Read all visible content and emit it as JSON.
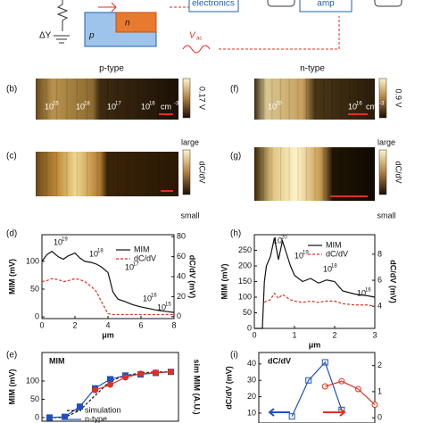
{
  "figure": {
    "top": {
      "dy": "ΔY",
      "p": "p",
      "n": "n",
      "electronics": "electronics",
      "amp": "amp",
      "vac": "V",
      "vac_sub": "ac"
    },
    "p_type": "p-type",
    "n_type": "n-type",
    "b": {
      "label": "(b)",
      "doping": [
        {
          "base": "10",
          "exp": "15"
        },
        {
          "base": "10",
          "exp": "18"
        },
        {
          "base": "10",
          "exp": "17"
        },
        {
          "base": "10",
          "exp": "16"
        }
      ],
      "unit": "cm",
      "unit_exp": "-3",
      "colorbar": "0.17 V"
    },
    "f": {
      "label": "(f)",
      "doping": [
        {
          "base": "10",
          "exp": "20"
        },
        {
          "base": "10",
          "exp": "16"
        }
      ],
      "unit": "cm",
      "unit_exp": "-3",
      "colorbar": "0.9 V"
    },
    "c": {
      "label": "(c)",
      "top": "large",
      "middle": "dC/dV",
      "bottom": "small"
    },
    "g": {
      "label": "(g)",
      "top": "large",
      "middle": "dC/dV",
      "bottom": "small"
    }
  },
  "chart_data": [
    {
      "type": "line",
      "label": "(d)",
      "xlabel": "μm",
      "ylabel": "MIM (mV)",
      "y2label": "dC/dV (mV)",
      "x": [
        0,
        0.3,
        0.6,
        1,
        1.3,
        1.6,
        2,
        2.3,
        2.6,
        3,
        3.3,
        3.6,
        4,
        4.3,
        4.6,
        5,
        5.5,
        6,
        6.5,
        7,
        7.5,
        8
      ],
      "xlim": [
        0,
        8
      ],
      "xticks": [
        0,
        2,
        4,
        6,
        8
      ],
      "ylim": [
        -3,
        148
      ],
      "yticks": [
        0,
        50,
        100
      ],
      "y2lim": [
        -2,
        82
      ],
      "y2ticks": [
        0,
        20,
        40,
        60,
        80
      ],
      "series": [
        {
          "name": "MIM",
          "color": "#111111",
          "values": [
            100,
            112,
            118,
            108,
            104,
            110,
            115,
            106,
            100,
            98,
            95,
            90,
            80,
            45,
            32,
            28,
            22,
            18,
            15,
            12,
            10,
            8
          ]
        },
        {
          "name": "dC/dV",
          "color": "#e03020",
          "axis": "y2",
          "dashed": true,
          "values": [
            35,
            36,
            38,
            37,
            35,
            36,
            38,
            37,
            35,
            30,
            25,
            15,
            3,
            2,
            2,
            2,
            2,
            2,
            2,
            2,
            2,
            2
          ]
        }
      ],
      "annotations": [
        {
          "base": "10",
          "exp": "19"
        },
        {
          "base": "10",
          "exp": "18"
        },
        {
          "base": "10",
          "exp": "17"
        },
        {
          "base": "10",
          "exp": "16"
        },
        {
          "base": "10",
          "exp": "15"
        }
      ]
    },
    {
      "type": "line",
      "label": "(h)",
      "xlabel": "μm",
      "ylabel": "MIM (mV)",
      "y2label": "dC/dV (mV)",
      "x": [
        0,
        0.2,
        0.25,
        0.3,
        0.4,
        0.5,
        0.6,
        0.7,
        0.8,
        0.9,
        1,
        1.2,
        1.4,
        1.6,
        1.8,
        2,
        2.2,
        2.5,
        2.8,
        3
      ],
      "xlim": [
        0,
        3
      ],
      "xticks": [
        0,
        1,
        2,
        3
      ],
      "ylim": [
        0,
        300
      ],
      "yticks": [
        0,
        50,
        100,
        150,
        200,
        250
      ],
      "y2lim": [
        2.3,
        9.5
      ],
      "y2ticks": [
        4,
        6,
        8
      ],
      "series": [
        {
          "name": "MIM",
          "color": "#111111",
          "values": [
            0,
            0,
            150,
            200,
            230,
            290,
            220,
            280,
            240,
            200,
            170,
            150,
            160,
            145,
            155,
            150,
            120,
            110,
            105,
            100
          ]
        },
        {
          "name": "dC/dV",
          "color": "#e03020",
          "axis": "y2",
          "dashed": true,
          "values": [
            null,
            null,
            4.3,
            4.4,
            4.5,
            5,
            4.6,
            4.9,
            4.7,
            4.5,
            4.4,
            4.3,
            4.4,
            4.3,
            4.4,
            4.4,
            4.2,
            4.1,
            4.1,
            4.0
          ]
        }
      ],
      "annotations": [
        {
          "base": "10",
          "exp": "20"
        },
        {
          "base": "10",
          "exp": "19"
        },
        {
          "base": "10",
          "exp": "18"
        },
        {
          "base": "10",
          "exp": "16"
        }
      ]
    },
    {
      "type": "line",
      "label": "(e)",
      "title": "MIM",
      "ylabel": "MIM (mV)",
      "y2label": "sim MIM (A.U.)",
      "x": [
        0,
        1,
        2,
        3,
        4,
        5,
        6,
        7,
        8
      ],
      "xlim": [
        -0.5,
        8.5
      ],
      "ylim": [
        -10,
        178
      ],
      "yticks": [
        0,
        50,
        100
      ],
      "series": [
        {
          "name": "simulation",
          "color": "#111111",
          "dashed": true,
          "values": [
            0,
            0,
            20,
            60,
            100,
            115,
            122,
            125,
            125
          ]
        },
        {
          "name": "n-type",
          "color": "#2050c0",
          "marker": "square",
          "values": [
            0,
            2,
            30,
            80,
            105,
            115,
            118,
            122,
            125
          ]
        },
        {
          "color": "#e03020",
          "marker": "circle",
          "values": [
            null,
            null,
            null,
            75,
            90,
            110,
            120,
            123,
            125
          ]
        }
      ]
    },
    {
      "type": "line",
      "label": "(i)",
      "title": "dC/dV",
      "ylabel": "dC/dV (mV)",
      "x": [
        0,
        1,
        2,
        3,
        4,
        5
      ],
      "xlim": [
        -2,
        5
      ],
      "ylim": [
        4,
        47
      ],
      "yticks": [
        10,
        20,
        30,
        40
      ],
      "y2lim": [
        -0.2,
        2.5
      ],
      "y2ticks": [
        0,
        1,
        2
      ],
      "series": [
        {
          "color": "#2050c0",
          "marker": "square",
          "values": [
            8,
            30,
            41,
            12,
            null,
            null
          ]
        },
        {
          "color": "#e03020",
          "marker": "circle",
          "axis": "y2",
          "values": [
            null,
            null,
            1.2,
            1.4,
            1.1,
            0.5
          ]
        }
      ]
    }
  ]
}
